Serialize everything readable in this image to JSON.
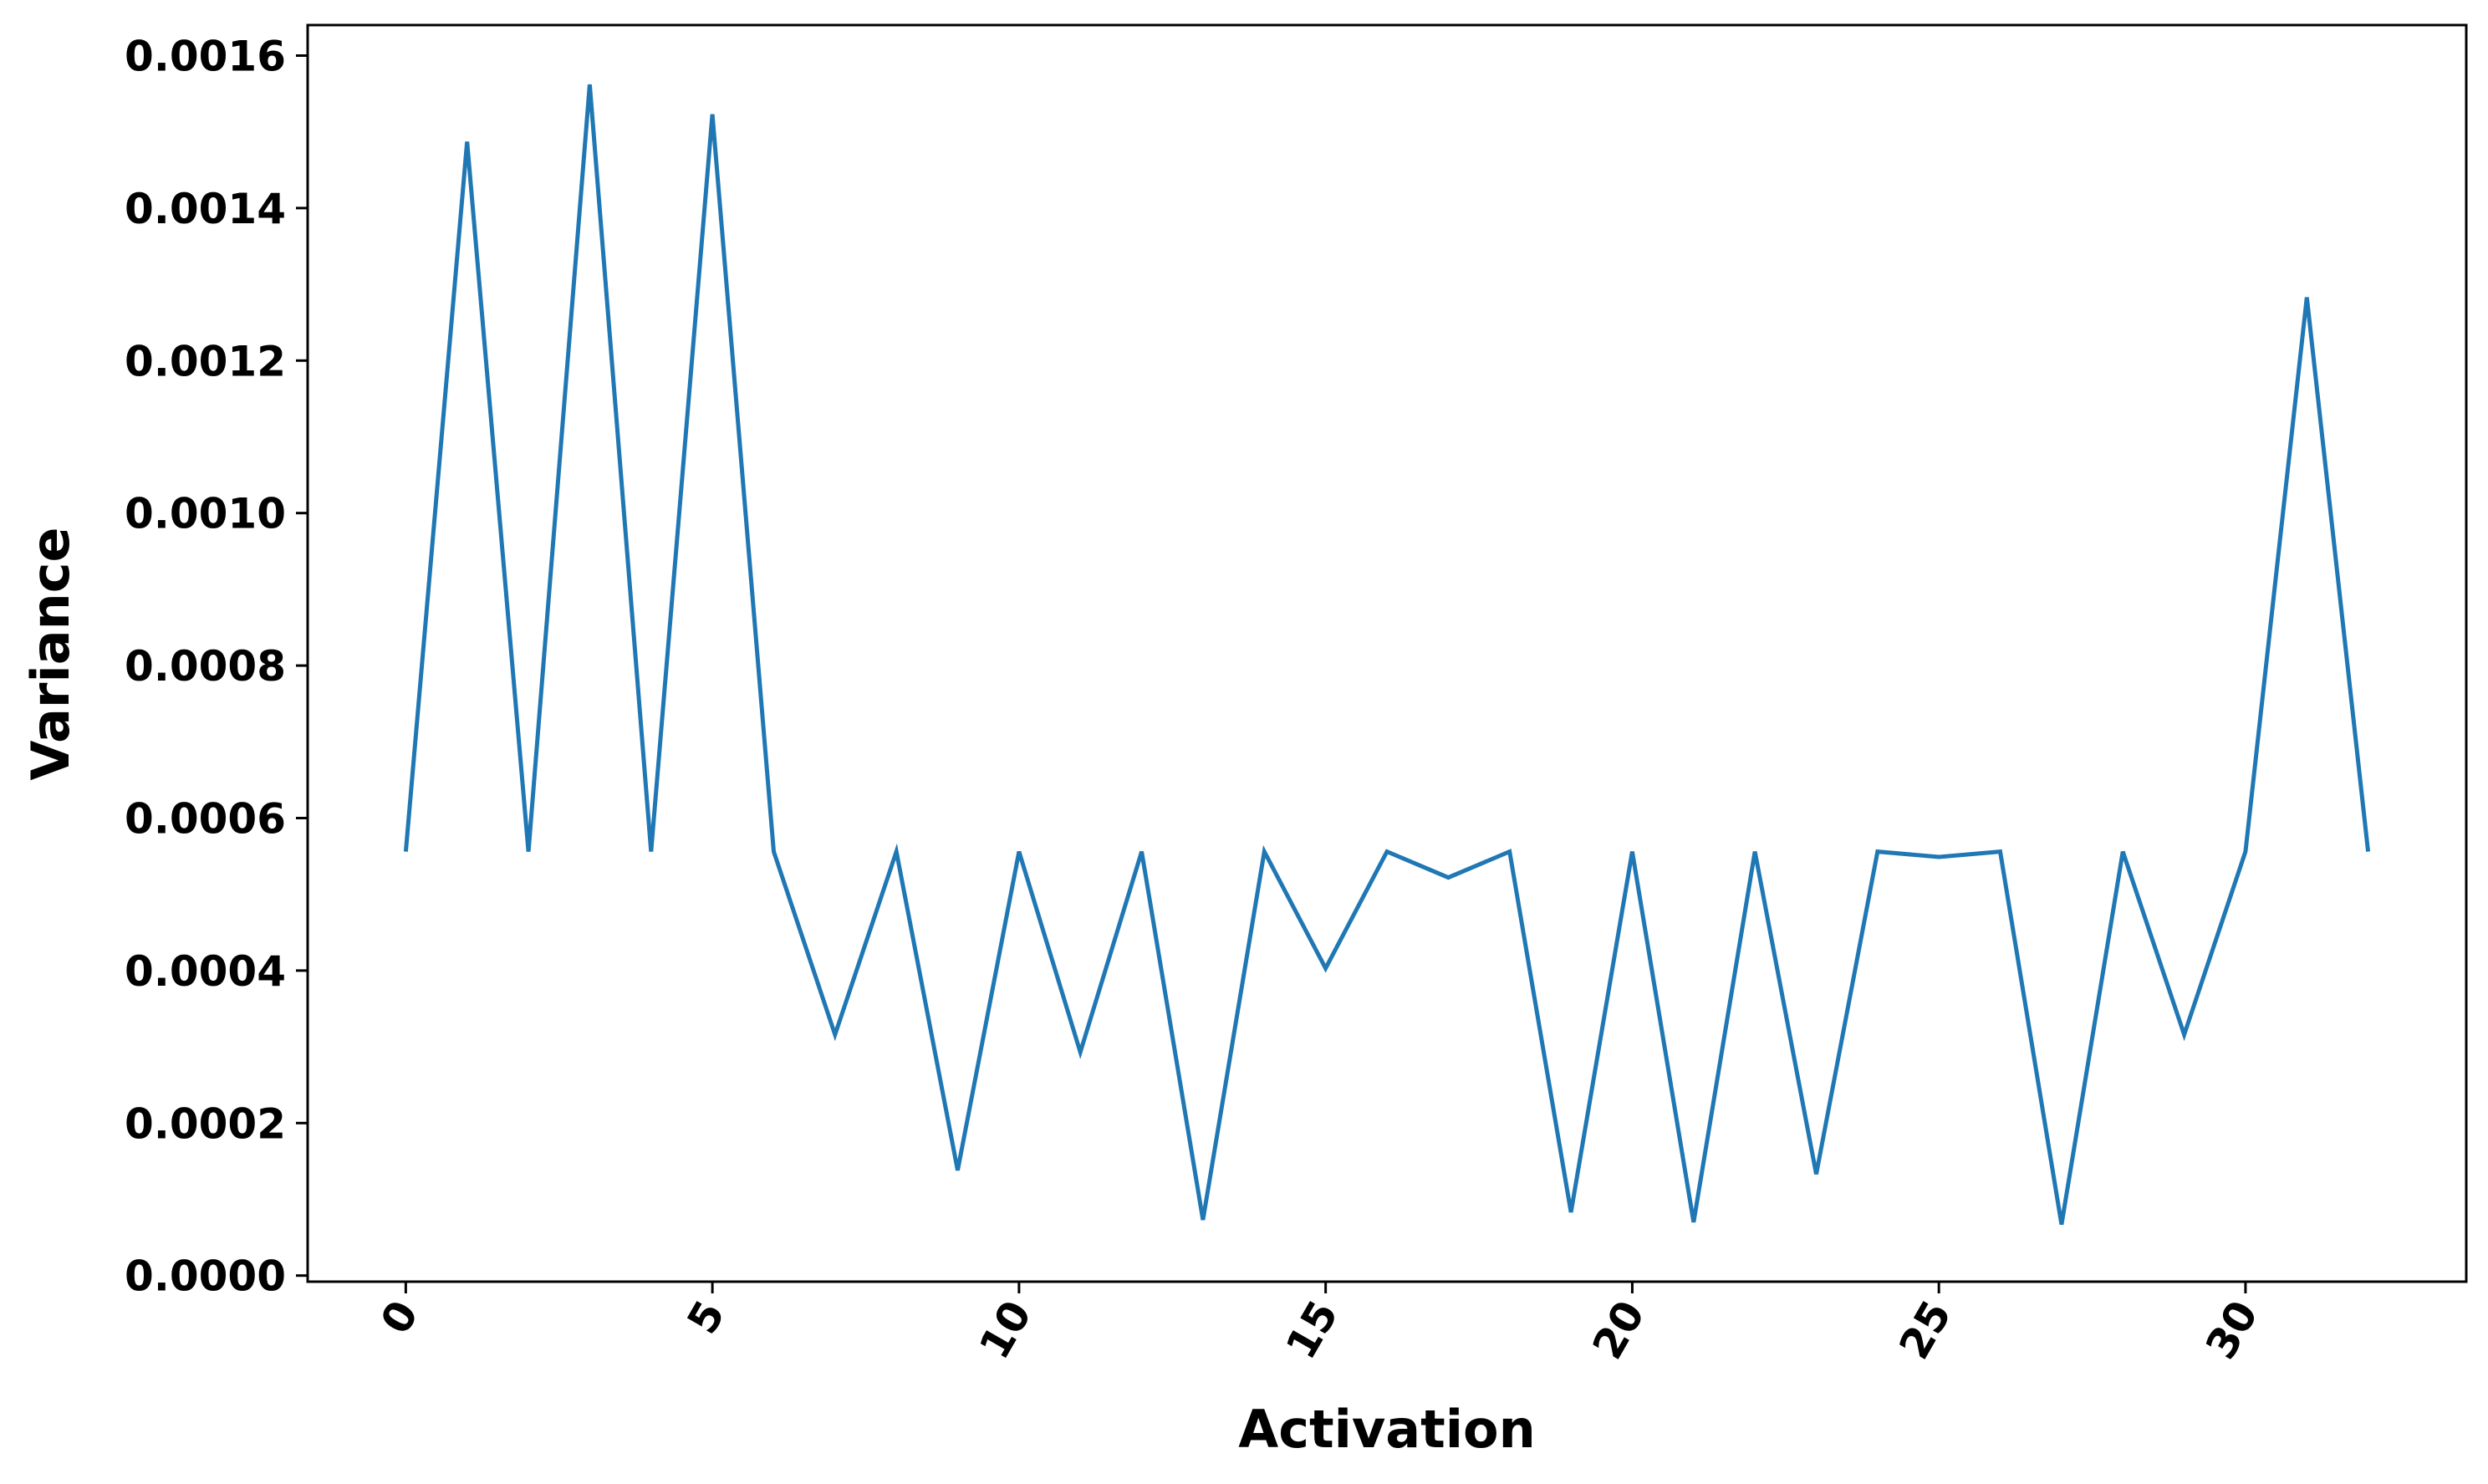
{
  "chart_data": {
    "type": "line",
    "title": "",
    "xlabel": "Activation",
    "ylabel": "Variance",
    "xlim": [
      -1.6,
      33.6
    ],
    "ylim": [
      -8e-06,
      0.00164
    ],
    "x_ticks": [
      0,
      5,
      10,
      15,
      20,
      25,
      30
    ],
    "x_tick_labels": [
      "0",
      "5",
      "10",
      "15",
      "20",
      "25",
      "30"
    ],
    "y_ticks": [
      0.0,
      0.0002,
      0.0004,
      0.0006,
      0.0008,
      0.001,
      0.0012,
      0.0014,
      0.0016
    ],
    "y_tick_labels": [
      "0.0000",
      "0.0002",
      "0.0004",
      "0.0006",
      "0.0008",
      "0.0010",
      "0.0012",
      "0.0014",
      "0.0016"
    ],
    "grid": false,
    "line_color": "#1f77b4",
    "series": [
      {
        "x": [
          0,
          1,
          2,
          3,
          4,
          5,
          6,
          7,
          8,
          9,
          10,
          11,
          12,
          13,
          14,
          15,
          16,
          17,
          18,
          19,
          20,
          21,
          22,
          23,
          24,
          25,
          26,
          27,
          28,
          29,
          30,
          31,
          32
        ],
        "values": [
          0.000556,
          0.001487,
          0.000556,
          0.001562,
          0.000556,
          0.001523,
          0.000556,
          0.000316,
          0.000556,
          0.000138,
          0.000556,
          0.000293,
          0.000556,
          7.3e-05,
          0.000556,
          0.000403,
          0.000556,
          0.000522,
          0.000556,
          8.3e-05,
          0.000556,
          7e-05,
          0.000556,
          0.000133,
          0.000556,
          0.000549,
          0.000556,
          6.7e-05,
          0.000556,
          0.000316,
          0.000556,
          0.001283,
          0.000556
        ]
      }
    ]
  }
}
